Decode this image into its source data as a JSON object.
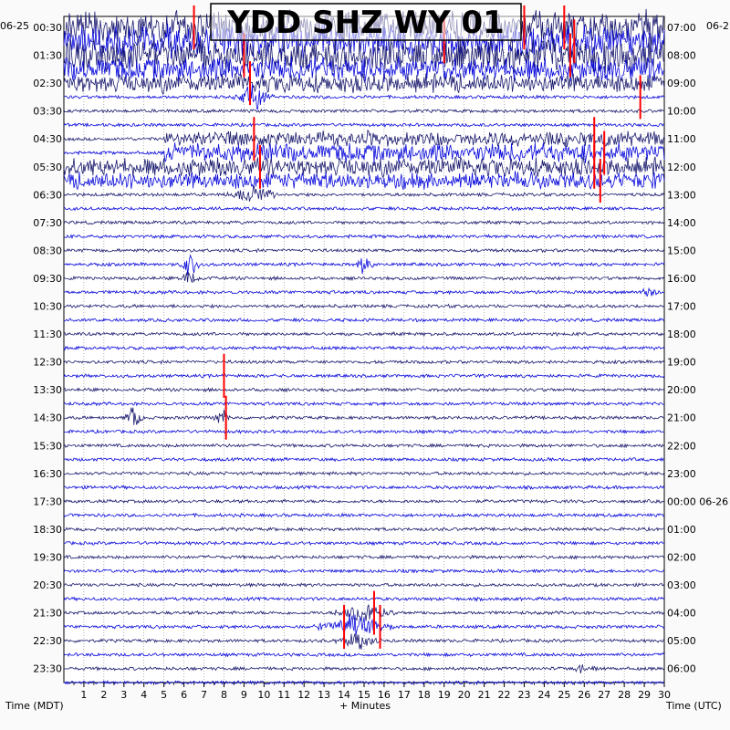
{
  "chart_data": {
    "type": "helicorder",
    "title": "YDD SHZ WY 01",
    "xlabel": "+ Minutes",
    "left_axis_title": "Time (MDT)",
    "right_axis_title": "Time (UTC)",
    "start_date_left": "06-25",
    "start_date_right": "06-2",
    "x_ticks": [
      1,
      2,
      3,
      4,
      5,
      6,
      7,
      8,
      9,
      10,
      11,
      12,
      13,
      14,
      15,
      16,
      17,
      18,
      19,
      20,
      21,
      22,
      23,
      24,
      25,
      26,
      27,
      28,
      29,
      30
    ],
    "xlim": [
      0,
      30
    ],
    "left_labels": [
      "00:30",
      "01:30",
      "02:30",
      "03:30",
      "04:30",
      "05:30",
      "06:30",
      "07:30",
      "08:30",
      "09:30",
      "10:30",
      "11:30",
      "12:30",
      "13:30",
      "14:30",
      "15:30",
      "16:30",
      "17:30",
      "18:30",
      "19:30",
      "20:30",
      "21:30",
      "22:30",
      "23:30"
    ],
    "right_labels": [
      "07:00",
      "08:00",
      "09:00",
      "10:00",
      "11:00",
      "12:00",
      "13:00",
      "14:00",
      "15:00",
      "16:00",
      "17:00",
      "18:00",
      "19:00",
      "20:00",
      "21:00",
      "22:00",
      "23:00",
      "00:00 06-26",
      "01:00",
      "02:00",
      "03:00",
      "04:00",
      "05:00",
      "06:00"
    ],
    "trace_colors": [
      "#1a1a6e",
      "#0a0adc"
    ],
    "clip_color": "#ff0000",
    "num_traces": 48,
    "minutes_per_trace": 30,
    "events": [
      {
        "trace": 0,
        "start": 0,
        "end": 30,
        "amplitude": 1.0
      },
      {
        "trace": 1,
        "start": 0,
        "end": 30,
        "amplitude": 0.9
      },
      {
        "trace": 2,
        "start": 0,
        "end": 30,
        "amplitude": 1.0
      },
      {
        "trace": 3,
        "start": 0,
        "end": 30,
        "amplitude": 0.7
      },
      {
        "trace": 4,
        "start": 0,
        "end": 30,
        "amplitude": 0.55
      },
      {
        "trace": 5,
        "start": 8.5,
        "end": 10.5,
        "amplitude": 0.9
      },
      {
        "trace": 8,
        "start": 5,
        "end": 30,
        "amplitude": 0.45
      },
      {
        "trace": 9,
        "start": 5,
        "end": 30,
        "amplitude": 0.55
      },
      {
        "trace": 10,
        "start": 0,
        "end": 30,
        "amplitude": 0.55
      },
      {
        "trace": 11,
        "start": 0,
        "end": 30,
        "amplitude": 0.5
      },
      {
        "trace": 12,
        "start": 8,
        "end": 11,
        "amplitude": 0.6
      },
      {
        "trace": 17,
        "start": 5.8,
        "end": 6.8,
        "amplitude": 0.9
      },
      {
        "trace": 17,
        "start": 14.5,
        "end": 15.5,
        "amplitude": 0.8
      },
      {
        "trace": 18,
        "start": 5.8,
        "end": 6.8,
        "amplitude": 0.8
      },
      {
        "trace": 19,
        "start": 28.5,
        "end": 30,
        "amplitude": 0.35
      },
      {
        "trace": 28,
        "start": 3,
        "end": 4,
        "amplitude": 0.9
      },
      {
        "trace": 28,
        "start": 7.5,
        "end": 8.3,
        "amplitude": 0.8
      },
      {
        "trace": 42,
        "start": 13.5,
        "end": 16.5,
        "amplitude": 0.9
      },
      {
        "trace": 43,
        "start": 12.5,
        "end": 16.5,
        "amplitude": 0.8
      },
      {
        "trace": 44,
        "start": 13.5,
        "end": 16,
        "amplitude": 0.6
      },
      {
        "trace": 46,
        "start": 25,
        "end": 27,
        "amplitude": 0.35
      }
    ],
    "clips": [
      {
        "trace": 0,
        "minute": 6.5
      },
      {
        "trace": 0,
        "minute": 23
      },
      {
        "trace": 0,
        "minute": 25
      },
      {
        "trace": 1,
        "minute": 19
      },
      {
        "trace": 1,
        "minute": 25.5
      },
      {
        "trace": 2,
        "minute": 9
      },
      {
        "trace": 2,
        "minute": 25.3
      },
      {
        "trace": 4,
        "minute": 9.3
      },
      {
        "trace": 5,
        "minute": 28.8
      },
      {
        "trace": 8,
        "minute": 9.5
      },
      {
        "trace": 8,
        "minute": 26.5
      },
      {
        "trace": 9,
        "minute": 27
      },
      {
        "trace": 10,
        "minute": 9.8
      },
      {
        "trace": 10,
        "minute": 26.5
      },
      {
        "trace": 11,
        "minute": 26.8
      },
      {
        "trace": 25,
        "minute": 8
      },
      {
        "trace": 28,
        "minute": 8.1
      },
      {
        "trace": 42,
        "minute": 15.5
      },
      {
        "trace": 43,
        "minute": 14
      },
      {
        "trace": 43,
        "minute": 15.8
      }
    ]
  }
}
